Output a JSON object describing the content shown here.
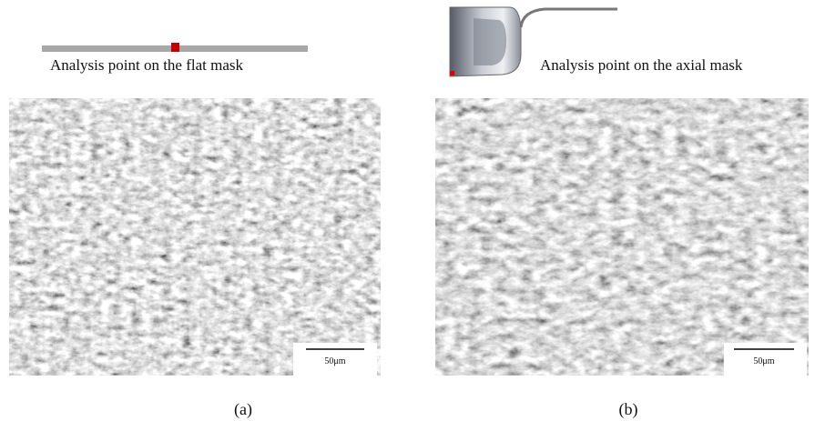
{
  "panels": [
    {
      "caption": "Analysis point on the flat mask",
      "scale_bar": "50μm",
      "label": "(a)"
    },
    {
      "caption": "Analysis point on the axial mask",
      "scale_bar": "50μm",
      "label": "(b)"
    }
  ]
}
